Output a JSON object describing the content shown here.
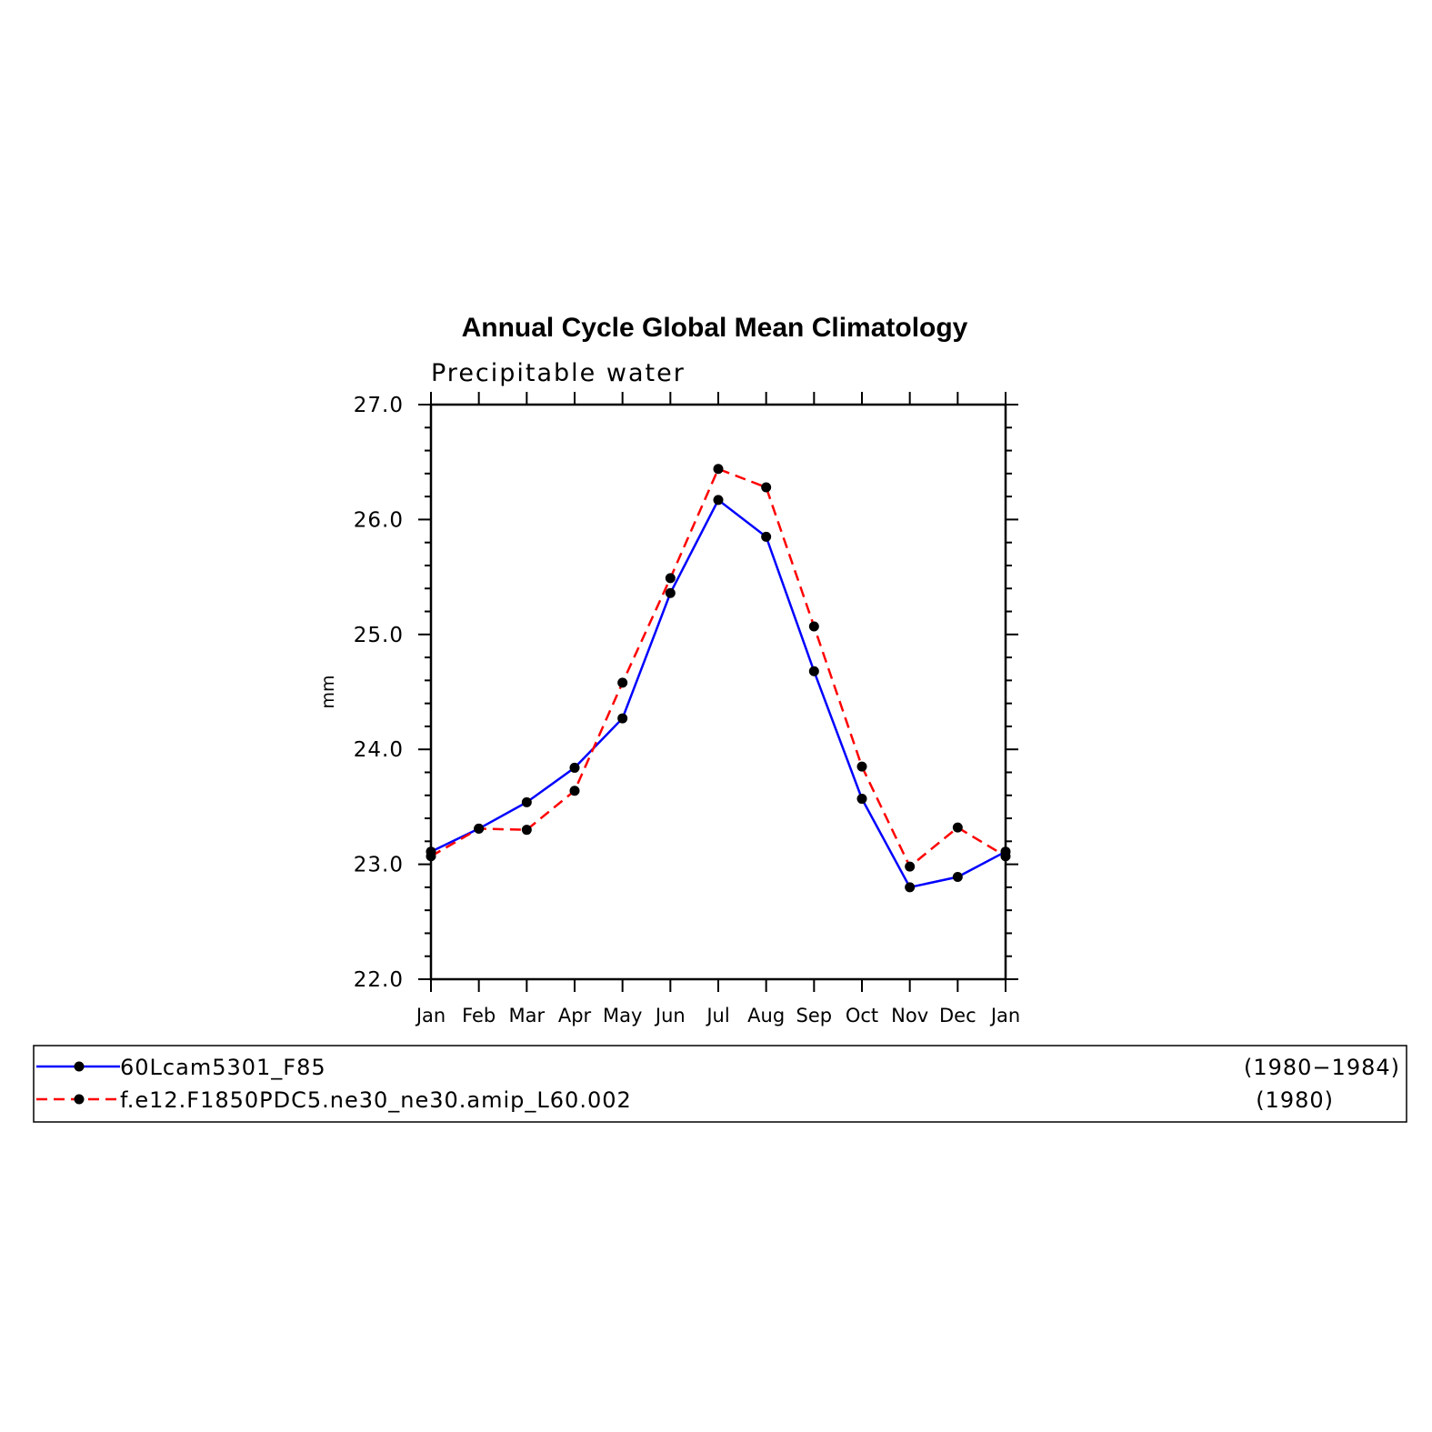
{
  "chart_data": {
    "type": "line",
    "title": "Annual Cycle Global Mean Climatology",
    "subtitle": "Precipitable water",
    "xlabel": "",
    "ylabel": "mm",
    "categories": [
      "Jan",
      "Feb",
      "Mar",
      "Apr",
      "May",
      "Jun",
      "Jul",
      "Aug",
      "Sep",
      "Oct",
      "Nov",
      "Dec",
      "Jan"
    ],
    "ylim": [
      22.0,
      27.0
    ],
    "yticks": [
      "22.0",
      "23.0",
      "24.0",
      "25.0",
      "26.0",
      "27.0"
    ],
    "grid": false,
    "legend_position": "bottom",
    "series": [
      {
        "name": "60Lcam5301_F85",
        "period": "(1980−1984)",
        "color": "#0000ff",
        "dash": "solid",
        "values": [
          23.11,
          23.31,
          23.54,
          23.84,
          24.27,
          25.36,
          26.17,
          25.85,
          24.68,
          23.57,
          22.8,
          22.89,
          23.11
        ]
      },
      {
        "name": "f.e12.F1850PDC5.ne30_ne30.amip_L60.002",
        "period": "(1980)",
        "color": "#ff0000",
        "dash": "dashed",
        "values": [
          23.07,
          23.31,
          23.3,
          23.64,
          24.58,
          25.49,
          26.44,
          26.28,
          25.07,
          23.85,
          22.98,
          23.32,
          23.07
        ]
      }
    ]
  }
}
